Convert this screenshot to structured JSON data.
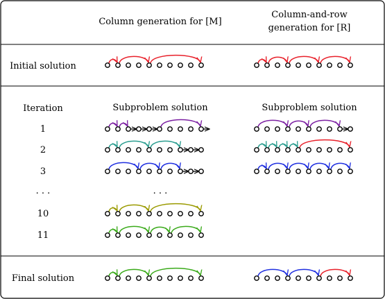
{
  "header": {
    "col1": "Column generation for [M]",
    "col2_line1": "Column-and-row",
    "col2_line2": "generation for [R]"
  },
  "initial": {
    "label": "Initial solution",
    "m": {
      "arcs": [
        [
          0,
          1,
          "red"
        ],
        [
          1,
          4,
          "red"
        ],
        [
          4,
          9,
          "red"
        ]
      ],
      "dots": 10,
      "tail_arrows": []
    },
    "r": {
      "arcs": [
        [
          0,
          1,
          "red"
        ],
        [
          1,
          3,
          "red"
        ],
        [
          3,
          6,
          "red"
        ],
        [
          6,
          9,
          "red"
        ]
      ],
      "dots": 10,
      "tail_arrows": []
    }
  },
  "iterations": {
    "label": "Iteration",
    "sub_m": "Subproblem solution",
    "sub_r": "Subproblem solution",
    "ellipsis_label": ". . .",
    "ellipsis_m": ". . .",
    "rows": [
      {
        "label": "1",
        "m": {
          "arcs": [
            [
              0,
              1,
              "purple"
            ],
            [
              1,
              2,
              "purple"
            ],
            [
              5,
              9,
              "purple"
            ]
          ],
          "dots": 10,
          "tail_arrows": [
            2,
            3,
            4,
            9
          ]
        },
        "r": {
          "arcs": [
            [
              0,
              3,
              "purple"
            ],
            [
              3,
              5,
              "purple"
            ],
            [
              5,
              8,
              "purple"
            ]
          ],
          "dots": 10,
          "tail_arrows": [
            8
          ]
        }
      },
      {
        "label": "2",
        "m": {
          "arcs": [
            [
              0,
              1,
              "teal"
            ],
            [
              1,
              4,
              "teal"
            ],
            [
              4,
              7,
              "teal"
            ]
          ],
          "dots": 10,
          "tail_arrows": [
            7,
            8
          ]
        },
        "r": {
          "arcs": [
            [
              0,
              1,
              "teal"
            ],
            [
              1,
              2,
              "teal"
            ],
            [
              2,
              3,
              "teal"
            ],
            [
              3,
              4,
              "teal"
            ],
            [
              4,
              9,
              "red"
            ]
          ],
          "dots": 10,
          "tail_arrows": []
        }
      },
      {
        "label": "3",
        "m": {
          "arcs": [
            [
              0,
              3,
              "blue"
            ],
            [
              3,
              5,
              "blue"
            ],
            [
              5,
              7,
              "blue"
            ]
          ],
          "dots": 10,
          "tail_arrows": [
            7,
            8
          ]
        },
        "r": {
          "arcs": [
            [
              0,
              1,
              "blue"
            ],
            [
              1,
              3,
              "blue"
            ],
            [
              3,
              5,
              "blue"
            ],
            [
              5,
              7,
              "blue"
            ],
            [
              7,
              9,
              "blue"
            ]
          ],
          "dots": 10,
          "tail_arrows": []
        }
      },
      {
        "label": "10",
        "m": {
          "arcs": [
            [
              0,
              1,
              "olive"
            ],
            [
              1,
              4,
              "olive"
            ],
            [
              4,
              9,
              "olive"
            ]
          ],
          "dots": 10,
          "tail_arrows": []
        },
        "r": null
      },
      {
        "label": "11",
        "m": {
          "arcs": [
            [
              0,
              1,
              "green"
            ],
            [
              1,
              4,
              "green"
            ],
            [
              4,
              6,
              "green"
            ],
            [
              6,
              9,
              "green"
            ]
          ],
          "dots": 10,
          "tail_arrows": []
        },
        "r": null
      }
    ]
  },
  "final": {
    "label": "Final solution",
    "m": {
      "arcs": [
        [
          0,
          1,
          "green"
        ],
        [
          1,
          4,
          "green"
        ],
        [
          4,
          9,
          "green"
        ]
      ],
      "dots": 10,
      "tail_arrows": []
    },
    "r": {
      "arcs": [
        [
          0,
          3,
          "blue"
        ],
        [
          3,
          6,
          "blue"
        ],
        [
          6,
          9,
          "red"
        ]
      ],
      "dots": 10,
      "tail_arrows": []
    }
  },
  "colors": {
    "red": "#e8202a",
    "purple": "#7b1fa2",
    "teal": "#2a9d8f",
    "blue": "#1f2fe0",
    "olive": "#9a9a00",
    "green": "#3aaa1a",
    "black": "#000000"
  }
}
